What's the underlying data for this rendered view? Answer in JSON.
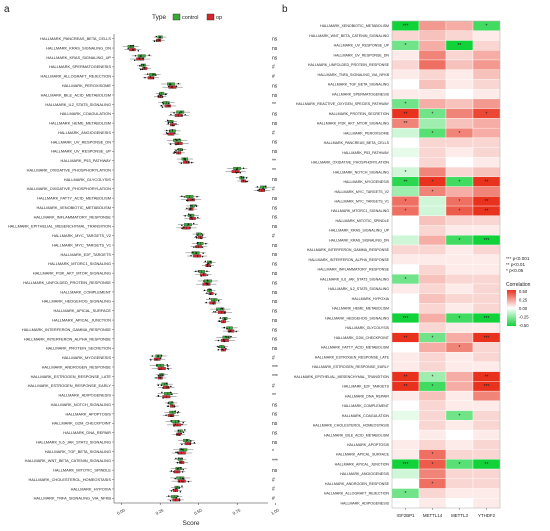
{
  "panel_labels": {
    "a": "a",
    "b": "b"
  },
  "colors": {
    "control": "#3aa935",
    "op": "#d6262b",
    "hm_high": "#e8321e",
    "hm_mid": "#ffffff",
    "hm_low": "#12d23a"
  },
  "legend": {
    "type_label": "Type",
    "control_label": "control",
    "op_label": "op"
  },
  "sig_legend": {
    "lines": [
      "*** p<0.001",
      "** p<0.01",
      "* p<0.05"
    ]
  },
  "colorbar": {
    "title": "Correlation",
    "ticks": [
      "0.50",
      "0.25",
      "0.00",
      "-0.25",
      "-0.50"
    ]
  },
  "chart_data": [
    {
      "type": "box",
      "panel": "a",
      "xlabel": "Score",
      "xlim": [
        -0.05,
        0.95
      ],
      "xticks": [
        "0.00",
        "0.25",
        "0.50",
        "0.75",
        "1.00"
      ],
      "xtick_values": [
        0.0,
        0.25,
        0.5,
        0.75,
        1.0
      ],
      "legend_title": "Type",
      "series_names": [
        "control",
        "op"
      ],
      "categories": [
        "HALLMARK_PANCREAS_BETA_CELLS",
        "HALLMARK_KRAS_SIGNALING_DN",
        "HALLMARK_KRAS_SIGNALING_UP",
        "HALLMARK_SPERMATOGENESIS",
        "HALLMARK_ALLOGRAFT_REJECTION",
        "HALLMARK_PEROXISOME",
        "HALLMARK_BILE_ACID_METABOLISM",
        "HALLMARK_IL2_STAT5_SIGNALING",
        "HALLMARK_COAGULATION",
        "HALLMARK_HEME_METABOLISM",
        "HALLMARK_ANGIOGENESIS",
        "HALLMARK_UV_RESPONSE_DN",
        "HALLMARK_UV_RESPONSE_UP",
        "HALLMARK_P53_PATHWAY",
        "HALLMARK_OXIDATIVE_PHOSPHORYLATION",
        "HALLMARK_GLYCOLYSIS",
        "HALLMARK_OXIDATIVE_PHOSPHORYLATION",
        "HALLMARK_FATTY_ACID_METABOLISM",
        "HALLMARK_XENOBIOTIC_METABOLISM",
        "HALLMARK_INFLAMMATORY_RESPONSE",
        "HALLMARK_EPITHELIAL_MESENCHYMAL_TRANSITION",
        "HALLMARK_MYC_TARGETS_V2",
        "HALLMARK_MYC_TARGETS_V1",
        "HALLMARK_E2F_TARGETS",
        "HALLMARK_MTORC1_SIGNALING",
        "HALLMARK_PI3K_AKT_MTOR_SIGNALING",
        "HALLMARK_UNFOLDED_PROTEIN_RESPONSE",
        "HALLMARK_COMPLEMENT",
        "HALLMARK_HEDGEHOG_SIGNALING",
        "HALLMARK_APICAL_SURFACE",
        "HALLMARK_APICAL_JUNCTION",
        "HALLMARK_INTERFERON_GAMMA_RESPONSE",
        "HALLMARK_INTERFERON_ALPHA_RESPONSE",
        "HALLMARK_PROTEIN_SECRETION",
        "HALLMARK_MYOGENESIS",
        "HALLMARK_ANDROGEN_RESPONSE",
        "HALLMARK_ESTROGEN_RESPONSE_LATE",
        "HALLMARK_ESTROGEN_RESPONSE_EARLY",
        "HALLMARK_ADIPOGENESIS",
        "HALLMARK_NOTCH_SIGNALING",
        "HALLMARK_APOPTOSIS",
        "HALLMARK_G2M_CHECKPOINT",
        "HALLMARK_DNA_REPAIR",
        "HALLMARK_IL6_JAK_STAT3_SIGNALING",
        "HALLMARK_TGF_BETA_SIGNALING",
        "HALLMARK_WNT_BETA_CATENIN_SIGNALING",
        "HALLMARK_MITOTIC_SPINDLE",
        "HALLMARK_CHOLESTEROL_HOMEOSTASIS",
        "HALLMARK_HYPOXIA",
        "HALLMARK_TNFA_SIGNALING_VIA_NFKB"
      ],
      "annotations": [
        "ns",
        "ns",
        "ns",
        "#",
        "#",
        "ns",
        "ns",
        "**",
        "ns",
        "ns",
        "#",
        "ns",
        "ns",
        "**",
        "**",
        "ns",
        "#",
        "ns",
        "ns",
        "ns",
        "ns",
        "#",
        "ns",
        "ns",
        "ns",
        "ns",
        "ns",
        "ns",
        "ns",
        "ns",
        "ns",
        "ns",
        "ns",
        "ns",
        "#",
        "***",
        "***",
        "#",
        "**",
        "ns",
        "ns",
        "ns",
        "ns",
        "ns",
        "*",
        "***",
        "ns",
        "#",
        "#",
        "#"
      ],
      "centers": [
        0.25,
        0.06,
        0.13,
        0.14,
        0.2,
        0.32,
        0.26,
        0.29,
        0.38,
        0.32,
        0.33,
        0.36,
        0.38,
        0.41,
        0.75,
        0.78,
        0.92,
        0.44,
        0.46,
        0.45,
        0.43,
        0.5,
        0.51,
        0.48,
        0.57,
        0.52,
        0.56,
        0.57,
        0.6,
        0.64,
        0.67,
        0.7,
        0.68,
        0.65,
        0.24,
        0.25,
        0.26,
        0.28,
        0.3,
        0.32,
        0.33,
        0.35,
        0.38,
        0.42,
        0.4,
        0.38,
        0.37,
        0.38,
        0.36,
        0.34
      ]
    },
    {
      "type": "heatmap",
      "panel": "b",
      "columns": [
        "IGF2BP1",
        "METTL14",
        "METTL3",
        "YTHDF2"
      ],
      "rows": [
        "HALLMARK_XENOBIOTIC_METABOLISM",
        "HALLMARK_WNT_BETA_CATENIN_SIGNALING",
        "HALLMARK_UV_RESPONSE_UP",
        "HALLMARK_UV_RESPONSE_DN",
        "HALLMARK_UNFOLDED_PROTEIN_RESPONSE",
        "HALLMARK_TNFA_SIGNALING_VIA_NFKB",
        "HALLMARK_TGF_BETA_SIGNALING",
        "HALLMARK_SPERMATOGENESIS",
        "HALLMARK_REACTIVE_OXYGEN_SPECIES_PATHWAY",
        "HALLMARK_PROTEIN_SECRETION",
        "HALLMARK_PI3K_AKT_MTOR_SIGNALING",
        "HALLMARK_PEROXISOME",
        "HALLMARK_PANCREAS_BETA_CELLS",
        "HALLMARK_P53_PATHWAY",
        "HALLMARK_OXIDATIVE_PHOSPHORYLATION",
        "HALLMARK_NOTCH_SIGNALING",
        "HALLMARK_MYOGENESIS",
        "HALLMARK_MYC_TARGETS_V2",
        "HALLMARK_MYC_TARGETS_V1",
        "HALLMARK_MTORC1_SIGNALING",
        "HALLMARK_MITOTIC_SPINDLE",
        "HALLMARK_KRAS_SIGNALING_UP",
        "HALLMARK_KRAS_SIGNALING_DN",
        "HALLMARK_INTERFERON_GAMMA_RESPONSE",
        "HALLMARK_INTERFERON_ALPHA_RESPONSE",
        "HALLMARK_INFLAMMATORY_RESPONSE",
        "HALLMARK_IL6_JAK_STAT3_SIGNALING",
        "HALLMARK_IL2_STAT5_SIGNALING",
        "HALLMARK_HYPOXIA",
        "HALLMARK_HEME_METABOLISM",
        "HALLMARK_HEDGEHOG_SIGNALING",
        "HALLMARK_GLYCOLYSIS",
        "HALLMARK_G2M_CHECKPOINT",
        "HALLMARK_FATTY_ACID_METABOLISM",
        "HALLMARK_ESTROGEN_RESPONSE_LATE",
        "HALLMARK_ESTROGEN_RESPONSE_EARLY",
        "HALLMARK_EPITHELIAL_MESENCHYMAL_TRANSITION",
        "HALLMARK_E2F_TARGETS",
        "HALLMARK_DNA_REPAIR",
        "HALLMARK_COMPLEMENT",
        "HALLMARK_COAGULATION",
        "HALLMARK_CHOLESTEROL_HOMEOSTASIS",
        "HALLMARK_BILE_ACID_METABOLISM",
        "HALLMARK_APOPTOSIS",
        "HALLMARK_APICAL_SURFACE",
        "HALLMARK_APICAL_JUNCTION",
        "HALLMARK_ANGIOGENESIS",
        "HALLMARK_ANDROGEN_RESPONSE",
        "HALLMARK_ALLOGRAFT_REJECTION",
        "HALLMARK_ADIPOGENESIS"
      ],
      "values": [
        [
          -0.5,
          0.25,
          0.2,
          -0.4
        ],
        [
          0.1,
          0.15,
          0.1,
          0.05
        ],
        [
          -0.3,
          0.2,
          -0.5,
          0.1
        ],
        [
          0.05,
          0.3,
          0.1,
          0.2
        ],
        [
          0.1,
          0.35,
          0.15,
          0.25
        ],
        [
          0.05,
          0.1,
          0.05,
          0.15
        ],
        [
          0.0,
          0.15,
          0.05,
          0.1
        ],
        [
          0.05,
          0.05,
          0.0,
          0.05
        ],
        [
          -0.3,
          0.2,
          0.15,
          0.25
        ],
        [
          0.55,
          -0.3,
          0.3,
          0.45
        ],
        [
          0.3,
          -0.2,
          0.15,
          0.2
        ],
        [
          -0.1,
          -0.35,
          0.3,
          0.2
        ],
        [
          0.0,
          0.1,
          0.1,
          0.1
        ],
        [
          -0.05,
          0.1,
          0.05,
          0.1
        ],
        [
          0.0,
          0.1,
          0.0,
          0.05
        ],
        [
          -0.1,
          0.3,
          0.1,
          0.15
        ],
        [
          -0.45,
          0.5,
          -0.4,
          0.5
        ],
        [
          -0.2,
          0.3,
          0.2,
          0.3
        ],
        [
          0.35,
          -0.1,
          0.35,
          0.5
        ],
        [
          0.35,
          -0.1,
          0.4,
          0.5
        ],
        [
          0.0,
          0.15,
          0.1,
          0.1
        ],
        [
          0.0,
          0.1,
          0.05,
          0.05
        ],
        [
          -0.1,
          0.2,
          -0.4,
          -0.5
        ],
        [
          0.1,
          0.1,
          0.05,
          0.1
        ],
        [
          0.05,
          0.05,
          0.05,
          0.05
        ],
        [
          0.0,
          0.1,
          0.05,
          0.05
        ],
        [
          -0.3,
          0.15,
          0.1,
          0.1
        ],
        [
          0.05,
          0.1,
          0.05,
          0.1
        ],
        [
          0.0,
          0.15,
          0.1,
          0.1
        ],
        [
          0.0,
          0.1,
          0.05,
          0.1
        ],
        [
          -0.5,
          0.2,
          -0.4,
          -0.5
        ],
        [
          0.0,
          0.1,
          0.05,
          0.05
        ],
        [
          0.5,
          -0.3,
          0.2,
          0.55
        ],
        [
          0.0,
          0.2,
          0.3,
          0.1
        ],
        [
          0.05,
          0.1,
          0.05,
          0.1
        ],
        [
          0.05,
          0.1,
          0.05,
          0.05
        ],
        [
          0.55,
          -0.2,
          0.2,
          0.5
        ],
        [
          0.55,
          -0.4,
          0.2,
          0.55
        ],
        [
          0.05,
          0.15,
          0.05,
          0.3
        ],
        [
          0.0,
          0.1,
          0.05,
          0.05
        ],
        [
          -0.05,
          0.1,
          -0.3,
          0.1
        ],
        [
          0.0,
          0.1,
          0.05,
          0.1
        ],
        [
          0.0,
          0.05,
          0.0,
          0.05
        ],
        [
          0.05,
          0.1,
          0.05,
          0.1
        ],
        [
          0.05,
          0.35,
          0.1,
          0.1
        ],
        [
          -0.5,
          0.4,
          -0.35,
          -0.55
        ],
        [
          -0.1,
          0.3,
          0.1,
          0.1
        ],
        [
          0.0,
          0.35,
          0.1,
          0.1
        ],
        [
          -0.3,
          0.1,
          0.05,
          0.05
        ],
        [
          0.0,
          0.05,
          0.0,
          0.05
        ]
      ],
      "stars": [
        [
          "***",
          "",
          "",
          "*"
        ],
        [
          "",
          "",
          "",
          ""
        ],
        [
          "*",
          "",
          "**",
          ""
        ],
        [
          "",
          "",
          "",
          ""
        ],
        [
          "",
          "",
          "",
          ""
        ],
        [
          "",
          "",
          "",
          ""
        ],
        [
          "",
          "",
          "",
          ""
        ],
        [
          "",
          "",
          "",
          ""
        ],
        [
          "*",
          "",
          "",
          ""
        ],
        [
          "**",
          "*",
          "",
          "*"
        ],
        [
          "**",
          "",
          "",
          ""
        ],
        [
          "",
          "*",
          "*",
          ""
        ],
        [
          "",
          "",
          "",
          ""
        ],
        [
          "",
          "",
          "",
          ""
        ],
        [
          "",
          "",
          "",
          ""
        ],
        [
          "*",
          "",
          "",
          ""
        ],
        [
          "**",
          "*",
          "*",
          "**"
        ],
        [
          "",
          "*",
          "",
          ""
        ],
        [
          "*",
          "",
          "*",
          "**"
        ],
        [
          "*",
          "",
          "*",
          "**"
        ],
        [
          "",
          "",
          "",
          ""
        ],
        [
          "",
          "",
          "",
          ""
        ],
        [
          "",
          "",
          "*",
          "***"
        ],
        [
          "",
          "",
          "",
          ""
        ],
        [
          "",
          "",
          "",
          ""
        ],
        [
          "",
          "",
          "",
          ""
        ],
        [
          "*",
          "",
          "",
          ""
        ],
        [
          "",
          "",
          "",
          ""
        ],
        [
          "",
          "",
          "",
          ""
        ],
        [
          "",
          "",
          "",
          ""
        ],
        [
          "***",
          "",
          "*",
          "***"
        ],
        [
          "",
          "",
          "",
          ""
        ],
        [
          "**",
          "*",
          "",
          "***"
        ],
        [
          "",
          "",
          "*",
          ""
        ],
        [
          "",
          "",
          "",
          ""
        ],
        [
          "",
          "",
          "",
          ""
        ],
        [
          "**",
          "*",
          "",
          "**"
        ],
        [
          "**",
          "*",
          "",
          "***"
        ],
        [
          "",
          "",
          "",
          ""
        ],
        [
          "",
          "",
          "",
          ""
        ],
        [
          "",
          "",
          "*",
          ""
        ],
        [
          "",
          "",
          "",
          ""
        ],
        [
          "",
          "",
          "",
          ""
        ],
        [
          "",
          "",
          "",
          ""
        ],
        [
          "",
          "*",
          "",
          ""
        ],
        [
          "***",
          "*",
          "*",
          "**"
        ],
        [
          "",
          "",
          "",
          ""
        ],
        [
          "",
          "*",
          "",
          ""
        ],
        [
          "*",
          "",
          "",
          ""
        ],
        [
          "",
          "",
          "",
          ""
        ]
      ],
      "color_range": [
        -0.5,
        0.5
      ],
      "legend_title": "Correlation"
    }
  ]
}
